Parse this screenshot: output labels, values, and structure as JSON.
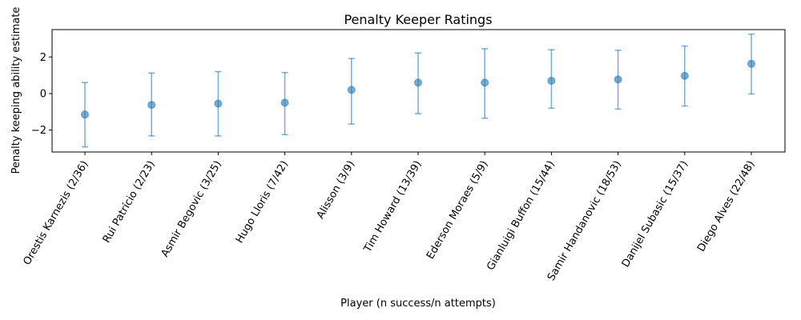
{
  "chart_data": {
    "type": "scatter",
    "title": "Penalty Keeper Ratings",
    "xlabel": "Player (n success/n attempts)",
    "ylabel": "Penalty keeping ability estimate",
    "ylim": [
      -3.2,
      3.5
    ],
    "yticks": [
      -2,
      0,
      2
    ],
    "grid": false,
    "marker_color": "#1f77b4",
    "categories": [
      "Orestis Karnezis (2/36)",
      "Rui Patrício (2/23)",
      "Asmir Begovic (3/25)",
      "Hugo Lloris (7/42)",
      "Alisson (3/9)",
      "Tim Howard (13/39)",
      "Ederson Moraes (5/9)",
      "Gianluigi Buffon (15/44)",
      "Samir Handanovic (18/53)",
      "Danijel Subasic (15/37)",
      "Diego Alves (22/48)"
    ],
    "values": [
      -1.15,
      -0.62,
      -0.55,
      -0.5,
      0.2,
      0.6,
      0.6,
      0.7,
      0.77,
      0.97,
      1.63
    ],
    "error_low": [
      -2.92,
      -2.32,
      -2.32,
      -2.25,
      -1.67,
      -1.1,
      -1.35,
      -0.8,
      -0.85,
      -0.68,
      -0.02
    ],
    "error_high": [
      0.6,
      1.12,
      1.2,
      1.15,
      1.92,
      2.22,
      2.45,
      2.4,
      2.37,
      2.6,
      3.25
    ]
  }
}
